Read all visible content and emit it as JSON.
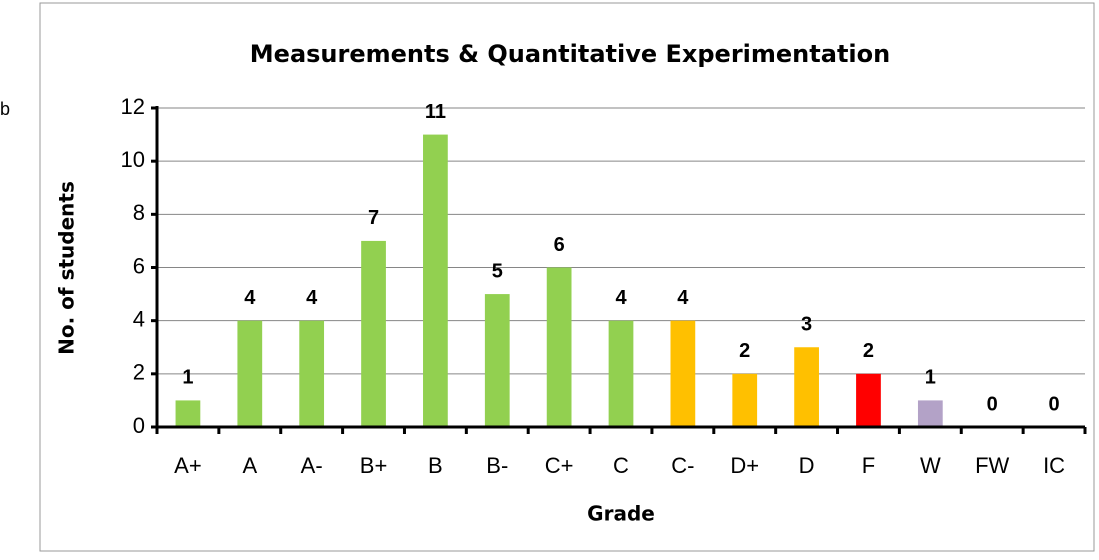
{
  "chart_data": {
    "type": "bar",
    "title": "Measurements & Quantitative Experimentation",
    "annotation": "b",
    "x_label": "Grade",
    "y_label": "No. of students",
    "categories": [
      "A+",
      "A",
      "A-",
      "B+",
      "B",
      "B-",
      "C+",
      "C",
      "C-",
      "D+",
      "D",
      "F",
      "W",
      "FW",
      "IC"
    ],
    "values": [
      1,
      4,
      4,
      7,
      11,
      5,
      6,
      4,
      4,
      2,
      3,
      2,
      1,
      0,
      0
    ],
    "colors": [
      "#92d050",
      "#92d050",
      "#92d050",
      "#92d050",
      "#92d050",
      "#92d050",
      "#92d050",
      "#92d050",
      "#ffc000",
      "#ffc000",
      "#ffc000",
      "#ff0000",
      "#b3a2c7",
      "#b3a2c7",
      "#b3a2c7"
    ],
    "ylim": [
      0,
      12
    ],
    "yticks": [
      0,
      2,
      4,
      6,
      8,
      10,
      12
    ],
    "grid": true
  }
}
